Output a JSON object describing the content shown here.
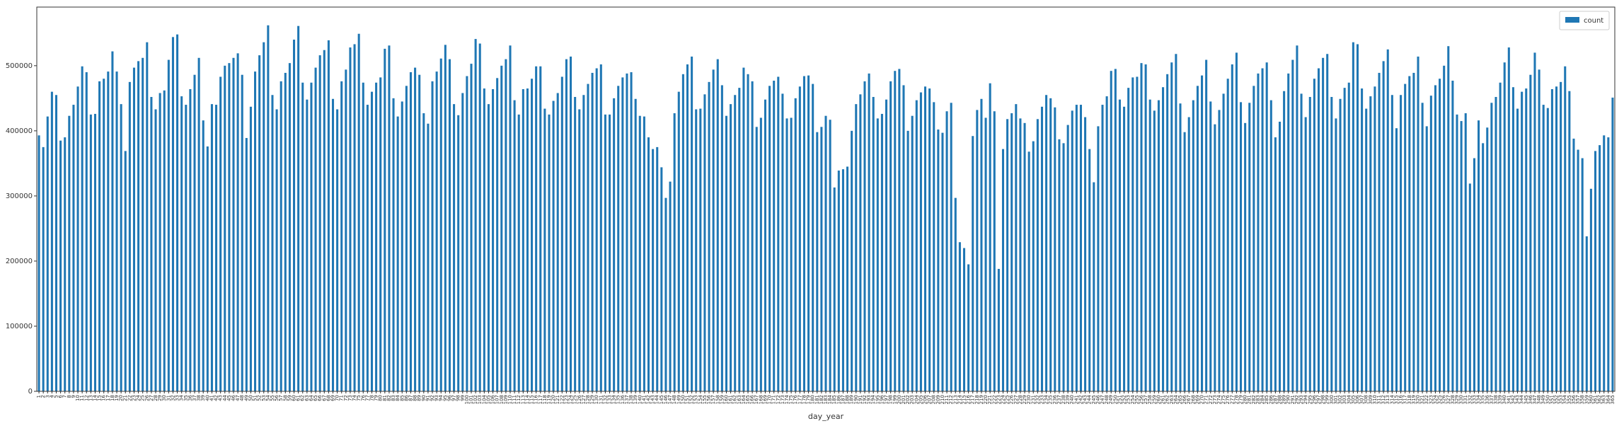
{
  "chart_data": {
    "type": "bar",
    "x_label": "day_year",
    "legend": "upper right",
    "series": [
      {
        "name": "count",
        "color": "#1f77b4",
        "values": [
          393000,
          375000,
          422000,
          460000,
          455000,
          385000,
          390000,
          423000,
          440000,
          468000,
          499000,
          490000,
          425000,
          426000,
          476000,
          480000,
          491000,
          522000,
          491000,
          441000,
          369000,
          475000,
          497000,
          507000,
          512000,
          536000,
          452000,
          433000,
          458000,
          462000,
          509000,
          544000,
          548000,
          453000,
          440000,
          464000,
          486000,
          512000,
          416000,
          376000,
          441000,
          440000,
          483000,
          500000,
          504000,
          512000,
          519000,
          486000,
          389000,
          437000,
          491000,
          516000,
          536000,
          562000,
          455000,
          433000,
          476000,
          489000,
          504000,
          540000,
          561000,
          474000,
          448000,
          474000,
          497000,
          516000,
          524000,
          539000,
          449000,
          433000,
          476000,
          494000,
          528000,
          533000,
          549000,
          474000,
          440000,
          460000,
          474000,
          482000,
          526000,
          531000,
          450000,
          422000,
          445000,
          469000,
          490000,
          497000,
          486000,
          427000,
          411000,
          476000,
          491000,
          511000,
          532000,
          510000,
          441000,
          424000,
          458000,
          484000,
          503000,
          541000,
          534000,
          465000,
          441000,
          464000,
          481000,
          500000,
          510000,
          531000,
          447000,
          425000,
          464000,
          465000,
          480000,
          499000,
          499000,
          434000,
          425000,
          446000,
          458000,
          483000,
          510000,
          514000,
          452000,
          433000,
          455000,
          472000,
          489000,
          496000,
          502000,
          425000,
          425000,
          450000,
          469000,
          482000,
          488000,
          490000,
          449000,
          423000,
          422000,
          390000,
          372000,
          375000,
          344000,
          297000,
          322000,
          427000,
          460000,
          487000,
          502000,
          514000,
          433000,
          434000,
          456000,
          475000,
          494000,
          510000,
          470000,
          423000,
          441000,
          455000,
          466000,
          497000,
          487000,
          476000,
          406000,
          420000,
          448000,
          469000,
          477000,
          483000,
          457000,
          419000,
          420000,
          450000,
          468000,
          484000,
          485000,
          472000,
          398000,
          406000,
          423000,
          417000,
          313000,
          339000,
          341000,
          345000,
          400000,
          441000,
          456000,
          476000,
          488000,
          452000,
          419000,
          426000,
          448000,
          476000,
          492000,
          495000,
          470000,
          400000,
          423000,
          447000,
          459000,
          468000,
          465000,
          444000,
          402000,
          397000,
          430000,
          443000,
          297000,
          229000,
          220000,
          195000,
          392000,
          432000,
          449000,
          420000,
          473000,
          430000,
          188000,
          372000,
          418000,
          427000,
          441000,
          419000,
          412000,
          368000,
          384000,
          418000,
          437000,
          455000,
          450000,
          436000,
          387000,
          381000,
          409000,
          431000,
          440000,
          440000,
          421000,
          372000,
          321000,
          407000,
          440000,
          453000,
          492000,
          495000,
          448000,
          437000,
          466000,
          482000,
          483000,
          504000,
          502000,
          448000,
          431000,
          447000,
          467000,
          487000,
          505000,
          518000,
          442000,
          398000,
          421000,
          447000,
          469000,
          485000,
          509000,
          445000,
          410000,
          432000,
          457000,
          480000,
          502000,
          520000,
          444000,
          412000,
          443000,
          469000,
          488000,
          496000,
          505000,
          447000,
          390000,
          414000,
          461000,
          488000,
          509000,
          531000,
          457000,
          421000,
          452000,
          480000,
          496000,
          512000,
          518000,
          452000,
          419000,
          449000,
          466000,
          474000,
          536000,
          533000,
          465000,
          434000,
          453000,
          468000,
          489000,
          507000,
          525000,
          455000,
          404000,
          455000,
          472000,
          484000,
          489000,
          514000,
          443000,
          407000,
          454000,
          470000,
          480000,
          500000,
          530000,
          477000,
          425000,
          415000,
          427000,
          319000,
          358000,
          416000,
          381000,
          405000,
          443000,
          452000,
          474000,
          505000,
          528000,
          467000,
          434000,
          460000,
          465000,
          486000,
          520000,
          494000,
          440000,
          435000,
          464000,
          468000,
          475000,
          499000,
          461000,
          388000,
          371000,
          358000,
          238000,
          311000,
          369000,
          378000,
          393000,
          390000,
          451000
        ]
      }
    ],
    "categories": [
      1,
      2,
      3,
      4,
      5,
      6,
      7,
      8,
      9,
      10,
      11,
      12,
      13,
      14,
      15,
      16,
      17,
      18,
      19,
      20,
      21,
      22,
      23,
      24,
      25,
      26,
      27,
      28,
      29,
      30,
      31,
      32,
      33,
      34,
      35,
      36,
      37,
      38,
      39,
      40,
      41,
      42,
      43,
      44,
      45,
      46,
      47,
      48,
      49,
      50,
      51,
      52,
      53,
      54,
      55,
      56,
      57,
      58,
      59,
      60,
      61,
      62,
      63,
      64,
      65,
      66,
      67,
      68,
      69,
      70,
      71,
      72,
      73,
      74,
      75,
      76,
      77,
      78,
      79,
      80,
      81,
      82,
      83,
      84,
      85,
      86,
      87,
      88,
      89,
      90,
      91,
      92,
      93,
      94,
      95,
      96,
      97,
      98,
      99,
      100,
      101,
      102,
      103,
      104,
      105,
      106,
      107,
      108,
      109,
      110,
      111,
      112,
      113,
      114,
      115,
      116,
      117,
      118,
      119,
      120,
      121,
      122,
      123,
      124,
      125,
      126,
      127,
      128,
      129,
      130,
      131,
      132,
      133,
      134,
      135,
      136,
      137,
      138,
      139,
      140,
      141,
      142,
      143,
      144,
      145,
      146,
      147,
      148,
      149,
      150,
      151,
      152,
      153,
      154,
      155,
      156,
      157,
      158,
      159,
      160,
      161,
      162,
      163,
      164,
      165,
      166,
      167,
      168,
      169,
      170,
      171,
      172,
      173,
      174,
      175,
      176,
      177,
      178,
      179,
      180,
      181,
      182,
      183,
      184,
      185,
      186,
      187,
      188,
      189,
      190,
      191,
      192,
      193,
      194,
      195,
      196,
      197,
      198,
      199,
      200,
      201,
      202,
      203,
      204,
      205,
      206,
      207,
      208,
      209,
      210,
      211,
      212,
      213,
      214,
      215,
      216,
      217,
      218,
      219,
      220,
      221,
      222,
      223,
      224,
      225,
      226,
      227,
      228,
      229,
      230,
      231,
      232,
      233,
      234,
      235,
      236,
      237,
      238,
      239,
      240,
      241,
      242,
      243,
      244,
      245,
      246,
      247,
      248,
      249,
      250,
      251,
      252,
      253,
      254,
      255,
      256,
      257,
      258,
      259,
      260,
      261,
      262,
      263,
      264,
      265,
      266,
      267,
      268,
      269,
      270,
      271,
      272,
      273,
      274,
      275,
      276,
      277,
      278,
      279,
      280,
      281,
      282,
      283,
      284,
      285,
      286,
      287,
      288,
      289,
      290,
      291,
      292,
      293,
      294,
      295,
      296,
      297,
      298,
      299,
      300,
      301,
      302,
      303,
      304,
      305,
      306,
      307,
      308,
      309,
      310,
      311,
      312,
      313,
      314,
      315,
      316,
      317,
      318,
      319,
      320,
      321,
      322,
      323,
      324,
      325,
      326,
      327,
      328,
      329,
      330,
      331,
      332,
      333,
      334,
      335,
      336,
      337,
      338,
      339,
      340,
      341,
      342,
      343,
      344,
      345,
      346,
      347,
      348,
      349,
      350,
      351,
      352,
      353,
      354,
      355,
      356,
      357,
      358,
      359,
      360,
      361,
      362,
      363,
      364,
      365
    ],
    "ylim": [
      0,
      590000
    ],
    "yticks": [
      0,
      100000,
      200000,
      300000,
      400000,
      500000
    ]
  }
}
